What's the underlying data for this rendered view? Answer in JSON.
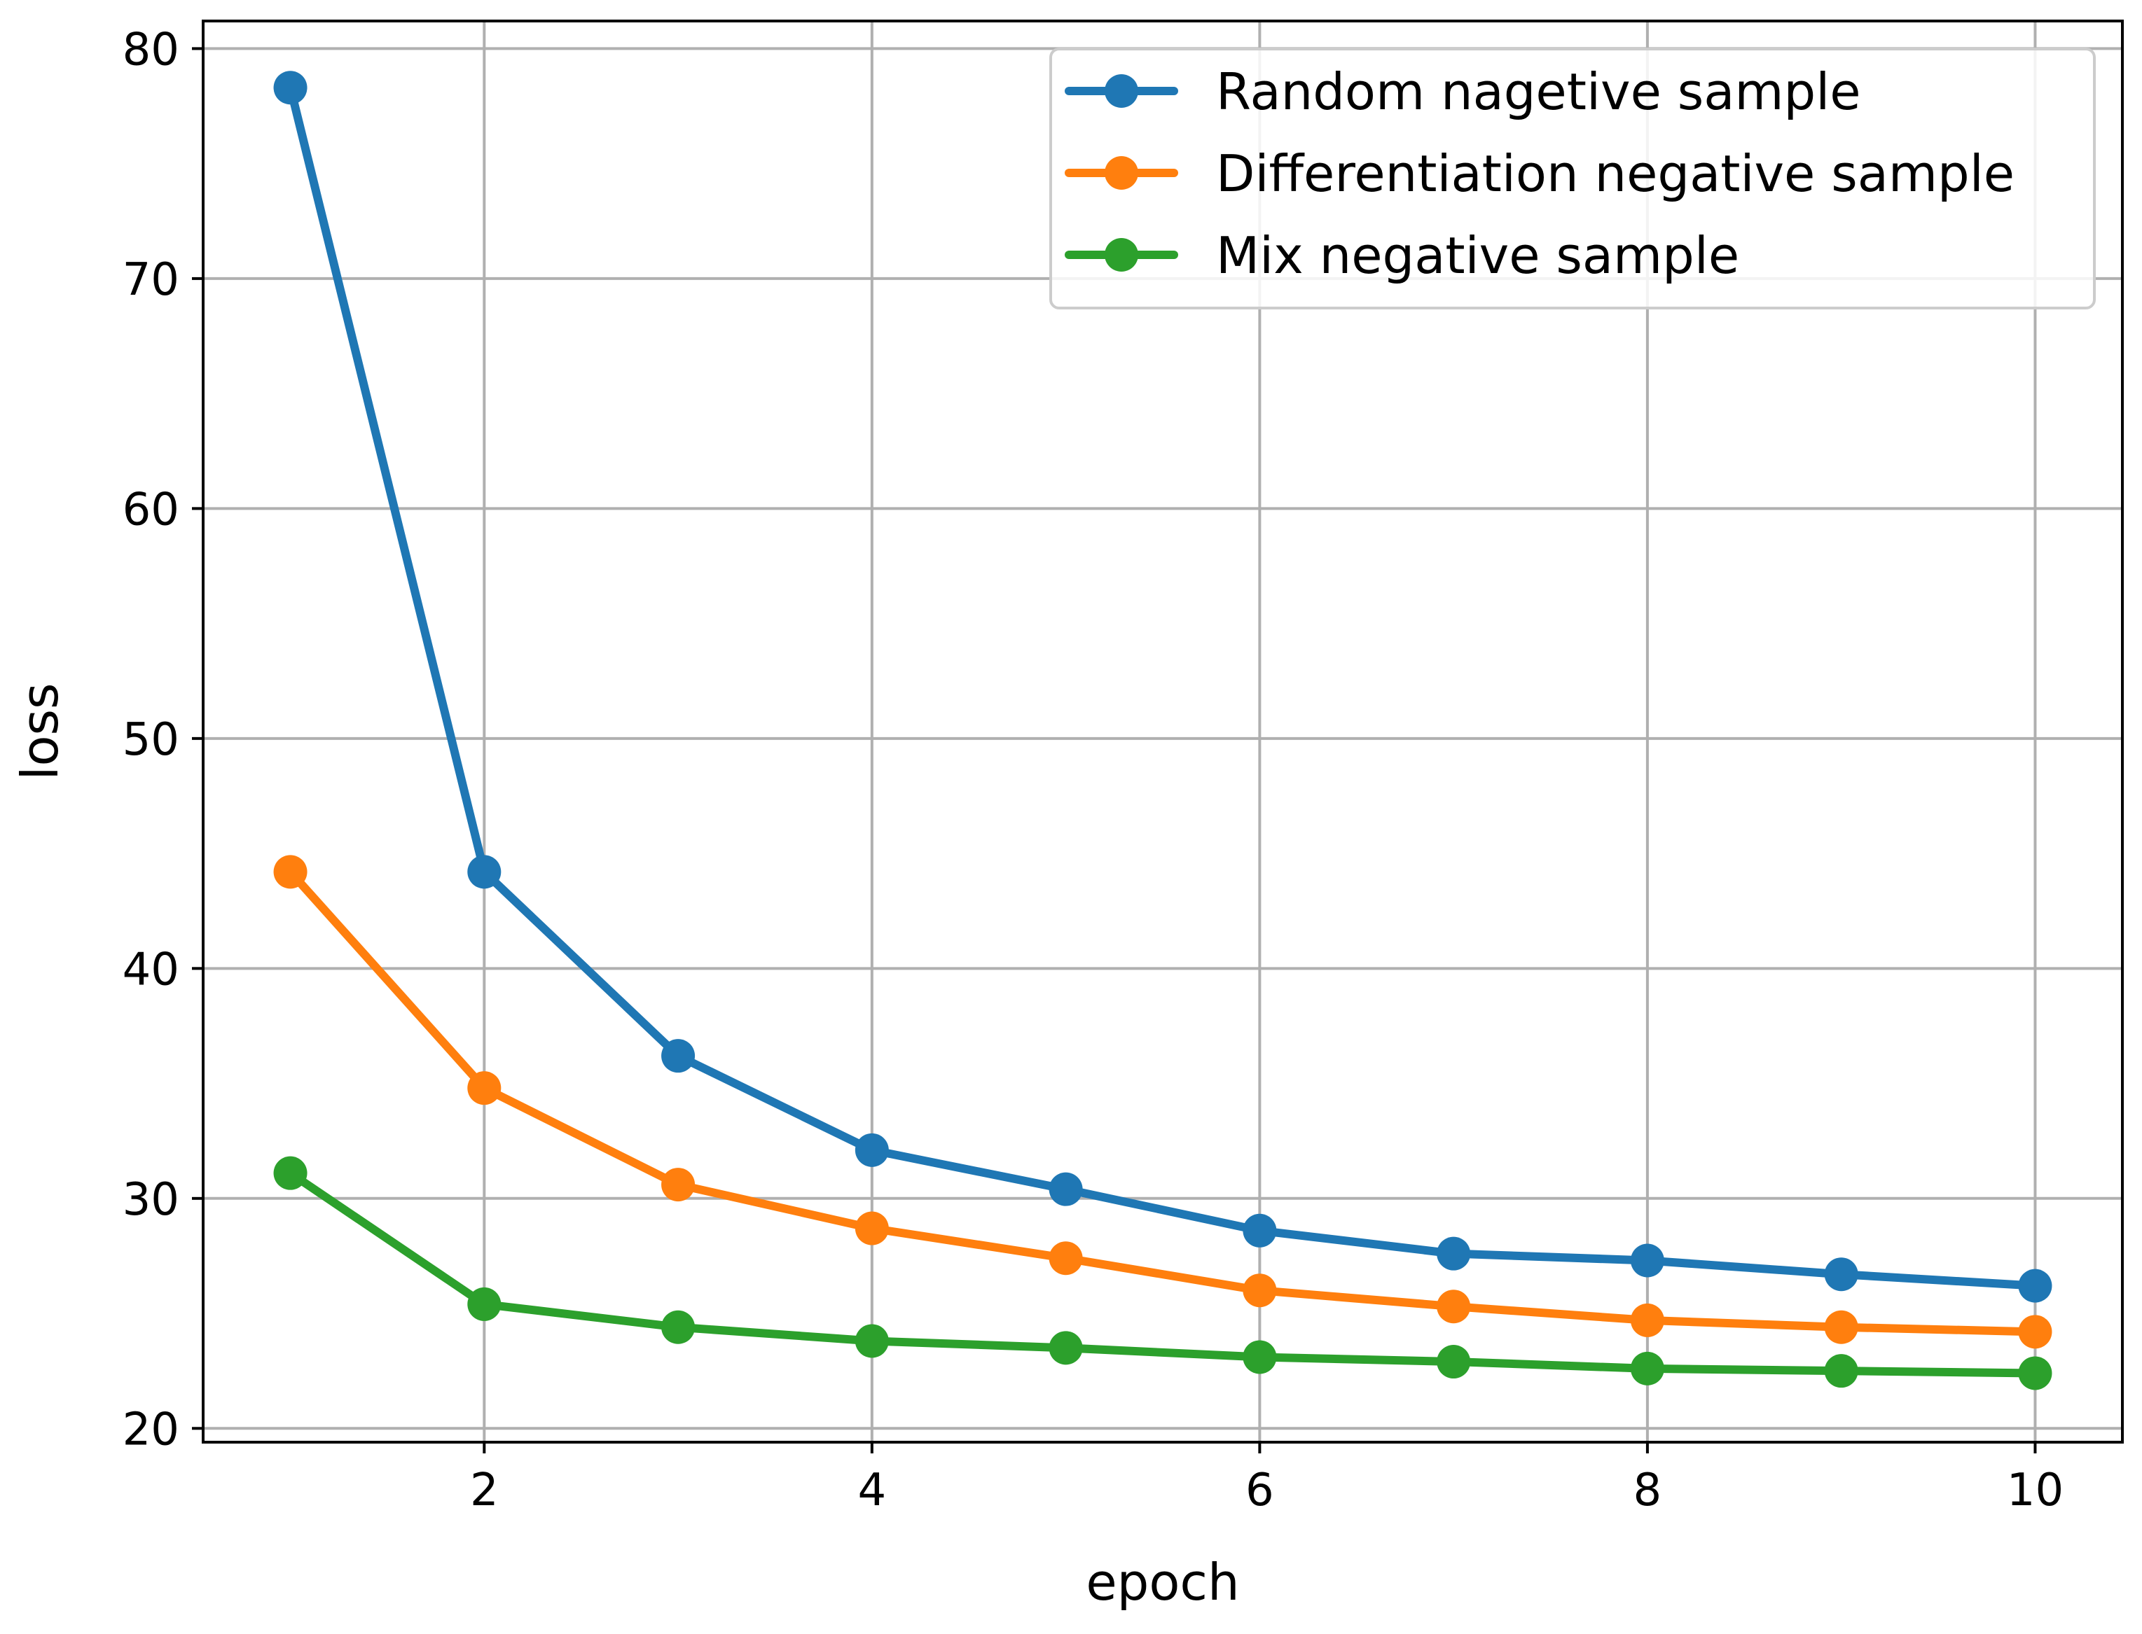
{
  "chart_data": {
    "type": "line",
    "title": "",
    "xlabel": "epoch",
    "ylabel": "loss",
    "xlim": [
      0.55,
      10.45
    ],
    "ylim": [
      19.4,
      81.2
    ],
    "xticks": [
      2,
      4,
      6,
      8,
      10
    ],
    "xtick_labels": [
      "2",
      "4",
      "6",
      "8",
      "10"
    ],
    "yticks": [
      20,
      30,
      40,
      50,
      60,
      70,
      80
    ],
    "ytick_labels": [
      "20",
      "30",
      "40",
      "50",
      "60",
      "70",
      "80"
    ],
    "grid": true,
    "legend_position": "top-right",
    "x": [
      1,
      2,
      3,
      4,
      5,
      6,
      7,
      8,
      9,
      10
    ],
    "series": [
      {
        "name": "Random nagetive sample",
        "color": "#1f77b4",
        "values": [
          78.3,
          44.2,
          36.2,
          32.1,
          30.4,
          28.6,
          27.6,
          27.3,
          26.7,
          26.2
        ]
      },
      {
        "name": "Differentiation negative sample",
        "color": "#ff7f0e",
        "values": [
          44.2,
          34.8,
          30.6,
          28.7,
          27.4,
          26.0,
          25.3,
          24.7,
          24.4,
          24.2
        ]
      },
      {
        "name": "Mix negative sample",
        "color": "#2ca02c",
        "values": [
          31.1,
          25.4,
          24.4,
          23.8,
          23.5,
          23.1,
          22.9,
          22.6,
          22.5,
          22.4
        ]
      }
    ]
  }
}
